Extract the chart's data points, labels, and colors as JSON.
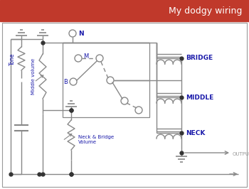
{
  "title": "My dodgy wiring",
  "title_bg": "#c0392b",
  "title_color": "#ffffff",
  "text_color": "#1a1aaa",
  "line_color": "#888888",
  "bg_color": "#ffffff",
  "border_color": "#999999",
  "component_color": "#888888",
  "output_label_color": "#999999",
  "pickup_labels": [
    "BRIDGE",
    "MIDDLE",
    "NECK"
  ],
  "figsize": [
    3.5,
    2.66
  ],
  "dpi": 100
}
